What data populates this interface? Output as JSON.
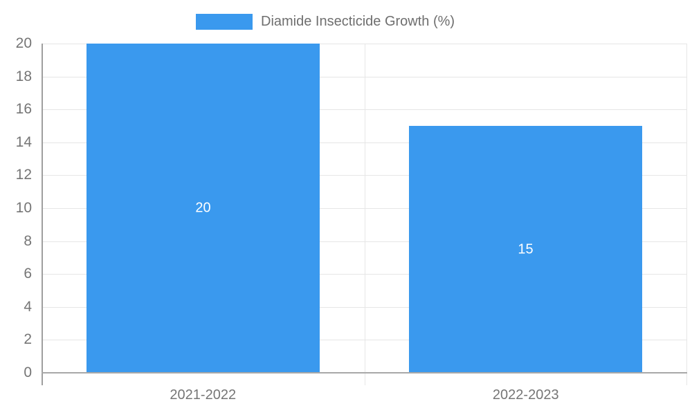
{
  "chart_data": {
    "type": "bar",
    "title": "",
    "legend": {
      "label": "Diamide Insecticide Growth (%)",
      "position": "top"
    },
    "categories": [
      "2021-2022",
      "2022-2023"
    ],
    "series": [
      {
        "name": "Diamide Insecticide Growth (%)",
        "values": [
          20,
          15
        ]
      }
    ],
    "bar_value_labels": [
      "20",
      "15"
    ],
    "xlabel": "",
    "ylabel": "",
    "ylim": [
      0,
      20
    ],
    "ytick_step": 2,
    "ytick_labels": [
      "0",
      "2",
      "4",
      "6",
      "8",
      "10",
      "12",
      "14",
      "16",
      "18",
      "20"
    ],
    "grid": true,
    "colors": {
      "bar": "#3A99EE",
      "bar_value_label": "#FFFFFF",
      "axis_text": "#757575",
      "legend_text": "#6E6E6E",
      "gridline": "#E6E6E6",
      "tick": "#D9D9D9",
      "axis_line": "#9E9E9E",
      "baseline": "#A8A8A8",
      "background": "#FFFFFF"
    }
  }
}
